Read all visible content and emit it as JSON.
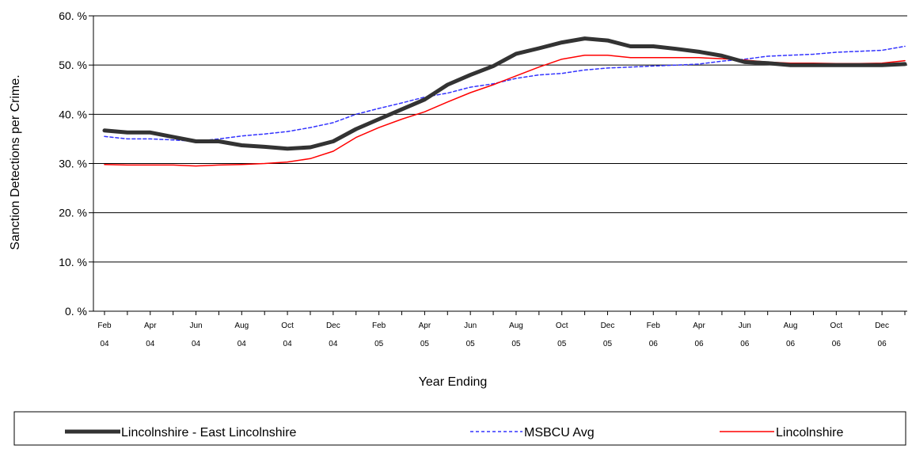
{
  "chart_data": {
    "type": "line",
    "xlabel": "Year Ending",
    "ylabel": "Sanction Detections per Crime.",
    "ylim": [
      0,
      60
    ],
    "yticks": [
      {
        "value": 0,
        "label": "0.  %"
      },
      {
        "value": 10,
        "label": "10.  %"
      },
      {
        "value": 20,
        "label": "20.  %"
      },
      {
        "value": 30,
        "label": "30.  %"
      },
      {
        "value": 40,
        "label": "40.  %"
      },
      {
        "value": 50,
        "label": "50.  %"
      },
      {
        "value": 60,
        "label": "60.  %"
      }
    ],
    "grid": true,
    "legend_position": "bottom",
    "x": [
      "Feb 04",
      "Mar 04",
      "Apr 04",
      "May 04",
      "Jun 04",
      "Jul 04",
      "Aug 04",
      "Sep 04",
      "Oct 04",
      "Nov 04",
      "Dec 04",
      "Jan 05",
      "Feb 05",
      "Mar 05",
      "Apr 05",
      "May 05",
      "Jun 05",
      "Jul 05",
      "Aug 05",
      "Sep 05",
      "Oct 05",
      "Nov 05",
      "Dec 05",
      "Jan 06",
      "Feb 06",
      "Mar 06",
      "Apr 06",
      "May 06",
      "Jun 06",
      "Jul 06",
      "Aug 06",
      "Sep 06",
      "Oct 06",
      "Nov 06",
      "Dec 06",
      "Jan 07"
    ],
    "xtick_labels": [
      {
        "top": "Feb",
        "bottom": "04"
      },
      {
        "top": "Apr",
        "bottom": "04"
      },
      {
        "top": "Jun",
        "bottom": "04"
      },
      {
        "top": "Aug",
        "bottom": "04"
      },
      {
        "top": "Oct",
        "bottom": "04"
      },
      {
        "top": "Dec",
        "bottom": "04"
      },
      {
        "top": "Feb",
        "bottom": "05"
      },
      {
        "top": "Apr",
        "bottom": "05"
      },
      {
        "top": "Jun",
        "bottom": "05"
      },
      {
        "top": "Aug",
        "bottom": "05"
      },
      {
        "top": "Oct",
        "bottom": "05"
      },
      {
        "top": "Dec",
        "bottom": "05"
      },
      {
        "top": "Feb",
        "bottom": "06"
      },
      {
        "top": "Apr",
        "bottom": "06"
      },
      {
        "top": "Jun",
        "bottom": "06"
      },
      {
        "top": "Aug",
        "bottom": "06"
      },
      {
        "top": "Oct",
        "bottom": "06"
      },
      {
        "top": "Dec",
        "bottom": "06"
      }
    ],
    "series": [
      {
        "name": "Lincolnshire - East Lincolnshire",
        "color": "#333333",
        "style": "thick-solid",
        "values": [
          36.7,
          36.3,
          36.3,
          35.4,
          34.5,
          34.5,
          33.7,
          33.4,
          33.0,
          33.3,
          34.5,
          37.0,
          39.0,
          41.0,
          43.0,
          46.0,
          48.0,
          49.8,
          52.3,
          53.4,
          54.6,
          55.4,
          55.0,
          53.8,
          53.8,
          53.3,
          52.7,
          51.9,
          50.6,
          50.4,
          50.0,
          50.0,
          50.0,
          50.0,
          50.0,
          50.2
        ]
      },
      {
        "name": "MSBCU Avg",
        "color": "#3333ff",
        "style": "dashed",
        "values": [
          35.5,
          35.0,
          35.0,
          34.8,
          34.5,
          35.0,
          35.6,
          36.0,
          36.5,
          37.3,
          38.3,
          40.0,
          41.2,
          42.3,
          43.5,
          44.3,
          45.5,
          46.2,
          47.3,
          48.0,
          48.3,
          49.0,
          49.4,
          49.6,
          49.8,
          50.0,
          50.2,
          50.8,
          51.2,
          51.8,
          52.0,
          52.2,
          52.6,
          52.8,
          53.0,
          53.8
        ]
      },
      {
        "name": "Lincolnshire",
        "color": "#ff0000",
        "style": "thin-solid",
        "values": [
          29.8,
          29.7,
          29.7,
          29.7,
          29.5,
          29.7,
          29.8,
          30.0,
          30.3,
          31.0,
          32.5,
          35.3,
          37.3,
          39.0,
          40.5,
          42.5,
          44.4,
          46.0,
          47.8,
          49.6,
          51.2,
          52.0,
          52.0,
          51.5,
          51.5,
          51.5,
          51.5,
          51.3,
          51.0,
          50.6,
          50.4,
          50.4,
          50.3,
          50.3,
          50.4,
          50.9
        ]
      }
    ]
  }
}
